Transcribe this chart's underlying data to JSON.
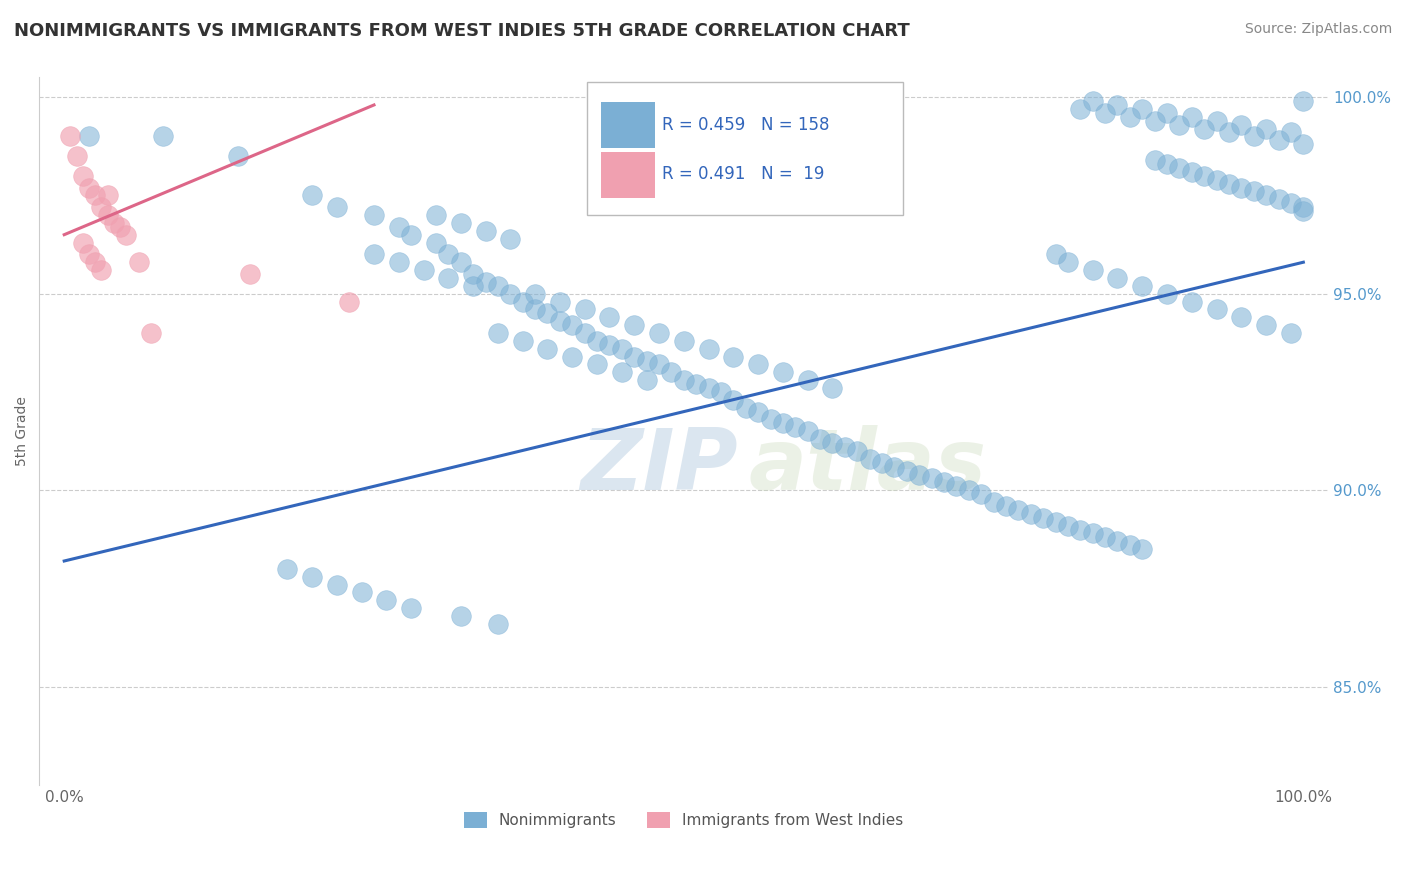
{
  "title": "NONIMMIGRANTS VS IMMIGRANTS FROM WEST INDIES 5TH GRADE CORRELATION CHART",
  "source": "Source: ZipAtlas.com",
  "ylabel": "5th Grade",
  "ytick_labels": [
    "100.0%",
    "95.0%",
    "90.0%",
    "85.0%"
  ],
  "ytick_values": [
    1.0,
    0.95,
    0.9,
    0.85
  ],
  "legend_entries": [
    {
      "label": "Nonimmigrants",
      "color": "#a8c8e8",
      "R": 0.459,
      "N": 158
    },
    {
      "label": "Immigrants from West Indies",
      "color": "#f4b8c8",
      "R": 0.491,
      "N": 19
    }
  ],
  "blue_scatter_x": [
    0.02,
    0.08,
    0.14,
    0.2,
    0.22,
    0.25,
    0.27,
    0.28,
    0.3,
    0.31,
    0.32,
    0.33,
    0.34,
    0.35,
    0.36,
    0.37,
    0.38,
    0.39,
    0.4,
    0.41,
    0.42,
    0.43,
    0.44,
    0.45,
    0.46,
    0.47,
    0.48,
    0.49,
    0.5,
    0.51,
    0.52,
    0.53,
    0.54,
    0.55,
    0.56,
    0.57,
    0.58,
    0.59,
    0.6,
    0.61,
    0.62,
    0.63,
    0.64,
    0.65,
    0.66,
    0.67,
    0.68,
    0.69,
    0.7,
    0.71,
    0.72,
    0.73,
    0.74,
    0.75,
    0.76,
    0.77,
    0.78,
    0.79,
    0.8,
    0.81,
    0.82,
    0.83,
    0.84,
    0.85,
    0.86,
    0.87,
    0.88,
    0.89,
    0.9,
    0.91,
    0.92,
    0.93,
    0.94,
    0.95,
    0.96,
    0.97,
    0.98,
    0.99,
    1.0,
    1.0,
    0.82,
    0.84,
    0.86,
    0.88,
    0.9,
    0.92,
    0.94,
    0.96,
    0.98,
    1.0,
    0.83,
    0.85,
    0.87,
    0.89,
    0.91,
    0.93,
    0.95,
    0.97,
    0.99,
    1.0,
    0.8,
    0.81,
    0.83,
    0.85,
    0.87,
    0.89,
    0.91,
    0.93,
    0.95,
    0.97,
    0.99,
    0.3,
    0.32,
    0.34,
    0.36,
    0.38,
    0.4,
    0.42,
    0.44,
    0.46,
    0.48,
    0.5,
    0.52,
    0.54,
    0.56,
    0.58,
    0.6,
    0.62,
    0.25,
    0.27,
    0.29,
    0.31,
    0.33,
    0.35,
    0.37,
    0.39,
    0.41,
    0.43,
    0.45,
    0.47,
    0.18,
    0.2,
    0.22,
    0.24,
    0.26,
    0.28,
    0.32,
    0.35
  ],
  "blue_scatter_y": [
    0.99,
    0.99,
    0.985,
    0.975,
    0.972,
    0.97,
    0.967,
    0.965,
    0.963,
    0.96,
    0.958,
    0.955,
    0.953,
    0.952,
    0.95,
    0.948,
    0.946,
    0.945,
    0.943,
    0.942,
    0.94,
    0.938,
    0.937,
    0.936,
    0.934,
    0.933,
    0.932,
    0.93,
    0.928,
    0.927,
    0.926,
    0.925,
    0.923,
    0.921,
    0.92,
    0.918,
    0.917,
    0.916,
    0.915,
    0.913,
    0.912,
    0.911,
    0.91,
    0.908,
    0.907,
    0.906,
    0.905,
    0.904,
    0.903,
    0.902,
    0.901,
    0.9,
    0.899,
    0.897,
    0.896,
    0.895,
    0.894,
    0.893,
    0.892,
    0.891,
    0.89,
    0.889,
    0.888,
    0.887,
    0.886,
    0.885,
    0.984,
    0.983,
    0.982,
    0.981,
    0.98,
    0.979,
    0.978,
    0.977,
    0.976,
    0.975,
    0.974,
    0.973,
    0.972,
    0.971,
    0.997,
    0.996,
    0.995,
    0.994,
    0.993,
    0.992,
    0.991,
    0.99,
    0.989,
    0.988,
    0.999,
    0.998,
    0.997,
    0.996,
    0.995,
    0.994,
    0.993,
    0.992,
    0.991,
    0.999,
    0.96,
    0.958,
    0.956,
    0.954,
    0.952,
    0.95,
    0.948,
    0.946,
    0.944,
    0.942,
    0.94,
    0.97,
    0.968,
    0.966,
    0.964,
    0.95,
    0.948,
    0.946,
    0.944,
    0.942,
    0.94,
    0.938,
    0.936,
    0.934,
    0.932,
    0.93,
    0.928,
    0.926,
    0.96,
    0.958,
    0.956,
    0.954,
    0.952,
    0.94,
    0.938,
    0.936,
    0.934,
    0.932,
    0.93,
    0.928,
    0.88,
    0.878,
    0.876,
    0.874,
    0.872,
    0.87,
    0.868,
    0.866
  ],
  "pink_scatter_x": [
    0.005,
    0.01,
    0.015,
    0.02,
    0.025,
    0.03,
    0.035,
    0.04,
    0.045,
    0.05,
    0.015,
    0.02,
    0.025,
    0.03,
    0.035,
    0.06,
    0.07,
    0.15,
    0.23
  ],
  "pink_scatter_y": [
    0.99,
    0.985,
    0.98,
    0.977,
    0.975,
    0.972,
    0.97,
    0.968,
    0.967,
    0.965,
    0.963,
    0.96,
    0.958,
    0.956,
    0.975,
    0.958,
    0.94,
    0.955,
    0.948
  ],
  "blue_line_x": [
    0.0,
    1.0
  ],
  "blue_line_y_start": 0.882,
  "blue_line_y_end": 0.958,
  "pink_line_x": [
    0.0,
    0.25
  ],
  "pink_line_y_start": 0.965,
  "pink_line_y_end": 0.998,
  "ylim": [
    0.825,
    1.005
  ],
  "xlim": [
    -0.02,
    1.02
  ],
  "watermark_zip": "ZIP",
  "watermark_atlas": "atlas",
  "watermark_color": "#c8d8e8",
  "title_color": "#333333",
  "source_color": "#888888",
  "blue_dot_color": "#7bafd4",
  "pink_dot_color": "#f0a0b0",
  "blue_line_color": "#3366bb",
  "pink_line_color": "#dd6688",
  "grid_color": "#cccccc",
  "yaxis_label_color": "#5599cc",
  "legend_R1": "0.459",
  "legend_N1": "158",
  "legend_R2": "0.491",
  "legend_N2": "19"
}
